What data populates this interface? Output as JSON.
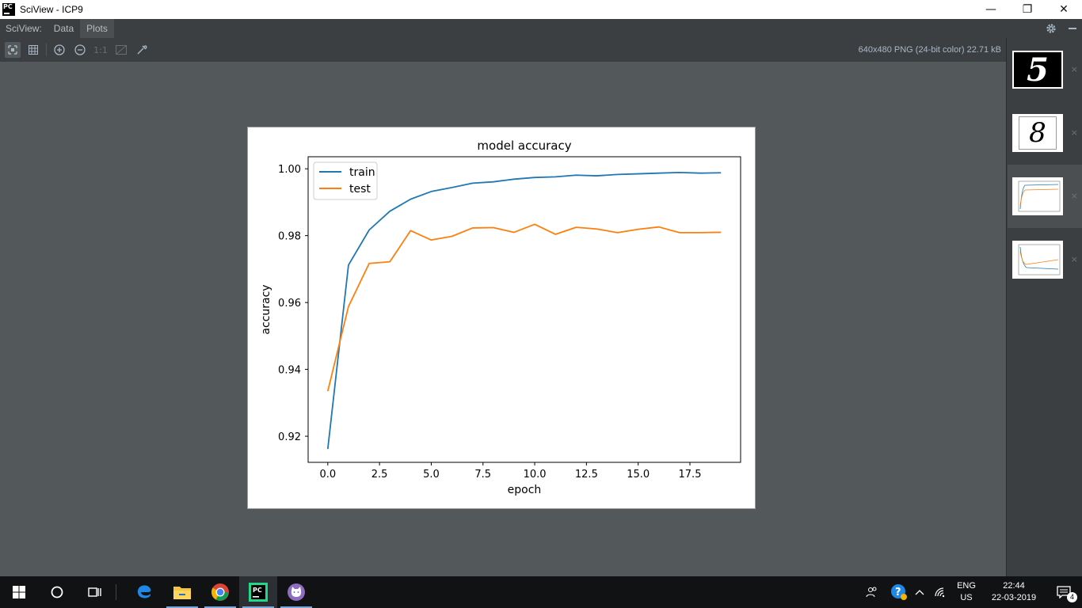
{
  "window": {
    "title": "SciView - ICP9",
    "minimize_glyph": "—",
    "restore_glyph": "❐",
    "close_glyph": "✕"
  },
  "menubar": {
    "label": "SciView:",
    "tabs": [
      "Data",
      "Plots"
    ],
    "active_tab": "Plots"
  },
  "toolbar": {
    "items": [
      "fit-to-window-icon",
      "grid-icon",
      "zoom-in-icon",
      "zoom-out-icon",
      "actual-size",
      "background-icon",
      "color-picker-icon"
    ],
    "actual_size_label": "1:1",
    "image_info": "640x480 PNG (24-bit color) 22.71 kB"
  },
  "thumbnails": {
    "items": [
      {
        "name": "digit-5-image",
        "digit": "5"
      },
      {
        "name": "digit-8-plot",
        "digit": "8"
      },
      {
        "name": "accuracy-plot",
        "digit": ""
      },
      {
        "name": "loss-plot",
        "digit": ""
      }
    ],
    "close_glyph": "×",
    "selected_index": 2
  },
  "chart_data": {
    "type": "line",
    "title": "model accuracy",
    "xlabel": "epoch",
    "ylabel": "accuracy",
    "xlim": [
      -0.95,
      19.95
    ],
    "ylim": [
      0.9122,
      1.0036
    ],
    "xticks": [
      0.0,
      2.5,
      5.0,
      7.5,
      10.0,
      12.5,
      15.0,
      17.5
    ],
    "xtick_labels": [
      "0.0",
      "2.5",
      "5.0",
      "7.5",
      "10.0",
      "12.5",
      "15.0",
      "17.5"
    ],
    "yticks": [
      0.92,
      0.94,
      0.96,
      0.98,
      1.0
    ],
    "ytick_labels": [
      "0.92",
      "0.94",
      "0.96",
      "0.98",
      "1.00"
    ],
    "legend_position": "upper-left",
    "grid": false,
    "x": [
      0,
      1,
      2,
      3,
      4,
      5,
      6,
      7,
      8,
      9,
      10,
      11,
      12,
      13,
      14,
      15,
      16,
      17,
      18,
      19
    ],
    "series": [
      {
        "name": "train",
        "color": "#1f77b4",
        "values": [
          0.9162,
          0.9712,
          0.9817,
          0.9873,
          0.9909,
          0.9932,
          0.9944,
          0.9957,
          0.9961,
          0.9969,
          0.9974,
          0.9976,
          0.9981,
          0.9979,
          0.9983,
          0.9985,
          0.9987,
          0.9989,
          0.9987,
          0.9988
        ]
      },
      {
        "name": "test",
        "color": "#ff7f0e",
        "values": [
          0.9335,
          0.9588,
          0.9717,
          0.9722,
          0.9815,
          0.9787,
          0.9798,
          0.9823,
          0.9824,
          0.981,
          0.9834,
          0.9804,
          0.9825,
          0.982,
          0.9809,
          0.9819,
          0.9826,
          0.9809,
          0.9809,
          0.981
        ]
      }
    ]
  },
  "taskbar": {
    "apps": [
      "start-icon",
      "search-icon",
      "task-view-icon",
      "edge-icon",
      "file-explorer-icon",
      "chrome-icon",
      "pycharm-icon",
      "github-desktop-icon"
    ],
    "language_line1": "ENG",
    "language_line2": "US",
    "time": "22:44",
    "date": "22-03-2019",
    "notification_count": "4"
  }
}
